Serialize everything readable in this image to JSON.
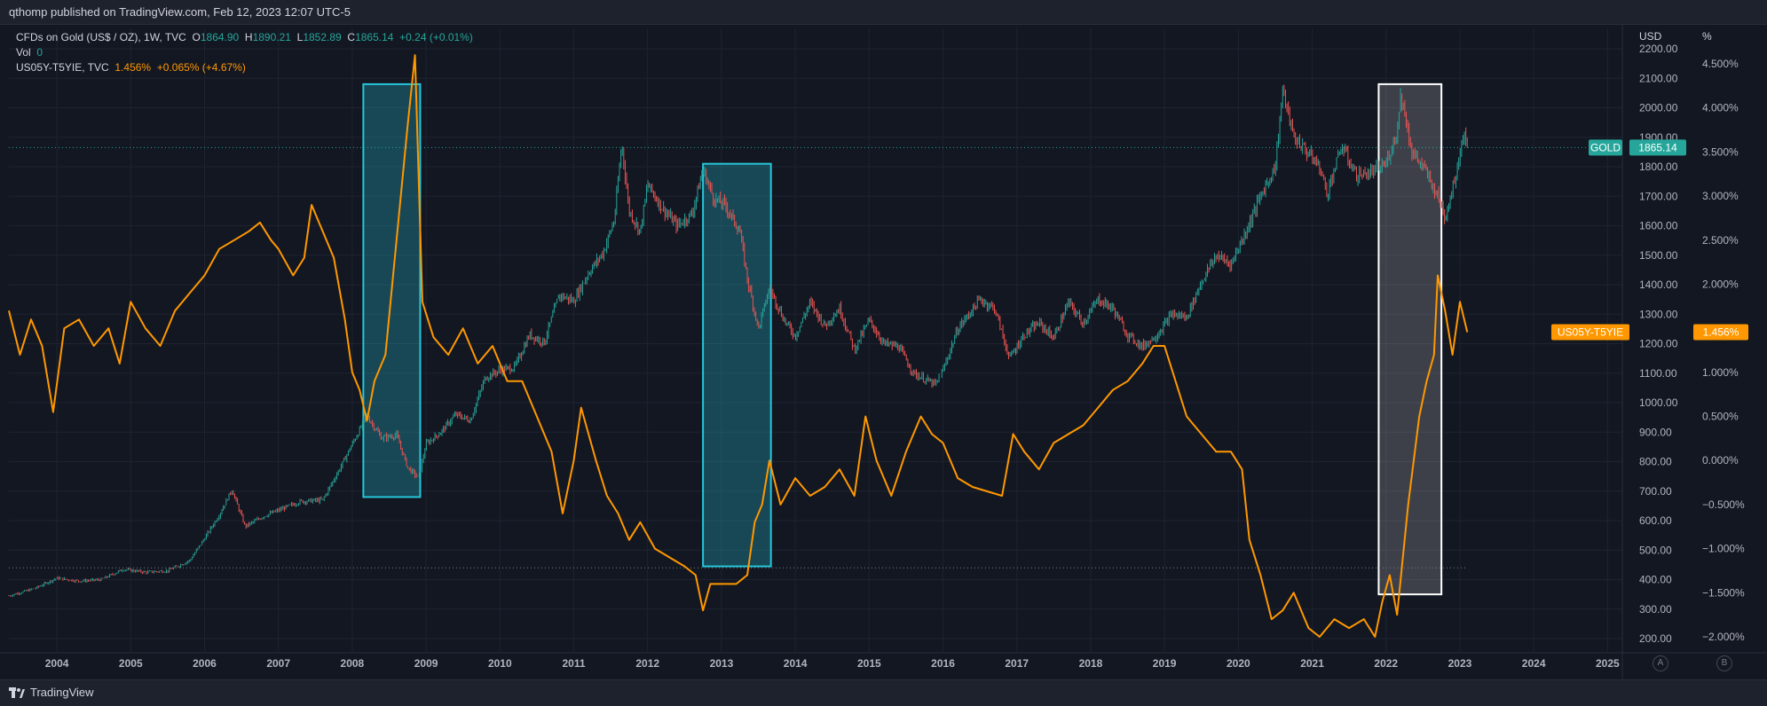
{
  "header": {
    "published": "qthomp published on TradingView.com, Feb 12, 2023 12:07 UTC-5"
  },
  "legend": {
    "gold": {
      "name": "CFDs on Gold (US$ / OZ), 1W, TVC",
      "o_label": "O",
      "o": "1864.90",
      "h_label": "H",
      "h": "1890.21",
      "l_label": "L",
      "l": "1852.89",
      "c_label": "C",
      "c": "1865.14",
      "change": "+0.24 (+0.01%)"
    },
    "vol": {
      "label": "Vol",
      "value": "0"
    },
    "spread": {
      "name": "US05Y-T5YIE, TVC",
      "value": "1.456%",
      "change": "+0.065% (+4.67%)"
    }
  },
  "axes": {
    "left_unit": "USD",
    "right_unit": "%",
    "usd_ticks": [
      "2200.00",
      "2100.00",
      "2000.00",
      "1900.00",
      "1800.00",
      "1700.00",
      "1600.00",
      "1500.00",
      "1400.00",
      "1300.00",
      "1200.00",
      "1100.00",
      "1000.00",
      "900.00",
      "800.00",
      "700.00",
      "600.00",
      "500.00",
      "400.00",
      "300.00",
      "200.00"
    ],
    "pct_ticks": [
      "4.500%",
      "4.000%",
      "3.500%",
      "3.000%",
      "2.500%",
      "2.000%",
      "1.500%",
      "1.000%",
      "0.500%",
      "0.000%",
      "−0.500%",
      "−1.000%",
      "−1.500%",
      "−2.000%"
    ],
    "x_ticks": [
      "2004",
      "2005",
      "2006",
      "2007",
      "2008",
      "2009",
      "2010",
      "2011",
      "2012",
      "2013",
      "2014",
      "2015",
      "2016",
      "2017",
      "2018",
      "2019",
      "2020",
      "2021",
      "2022",
      "2023",
      "2024",
      "2025"
    ]
  },
  "price_tags": {
    "gold_label": "GOLD",
    "gold_value": "1865.14",
    "spread_label": "US05Y-T5YIE",
    "spread_value": "1.456%"
  },
  "colors": {
    "background": "#131722",
    "gold_up": "#26a69a",
    "gold_down": "#ef5350",
    "spread_line": "#ff9800",
    "box_cyan": "#26c6da",
    "box_white": "#ffffff"
  },
  "footer": {
    "brand": "TradingView",
    "btn_a": "A",
    "btn_b": "B"
  },
  "chart_data": {
    "type": "line",
    "title": "CFDs on Gold (US$ / OZ), 1W, TVC",
    "xlabel": "",
    "ylabel": "USD",
    "xlim": [
      2003.35,
      2025.2
    ],
    "ylim_usd": [
      200,
      2200
    ],
    "ylim_pct": [
      -2.0,
      4.5
    ],
    "grid": true,
    "legend_position": "top-left",
    "series": [
      {
        "name": "CFDs on Gold (US$ / OZ), 1W, TVC",
        "axis": "left",
        "style": "candles",
        "points": [
          [
            2003.35,
            345
          ],
          [
            2003.7,
            370
          ],
          [
            2004.0,
            405
          ],
          [
            2004.3,
            395
          ],
          [
            2004.6,
            400
          ],
          [
            2004.9,
            435
          ],
          [
            2005.2,
            425
          ],
          [
            2005.5,
            430
          ],
          [
            2005.8,
            465
          ],
          [
            2006.0,
            540
          ],
          [
            2006.2,
            620
          ],
          [
            2006.37,
            705
          ],
          [
            2006.55,
            580
          ],
          [
            2006.8,
            615
          ],
          [
            2007.0,
            635
          ],
          [
            2007.3,
            665
          ],
          [
            2007.6,
            670
          ],
          [
            2007.85,
            785
          ],
          [
            2008.0,
            860
          ],
          [
            2008.2,
            955
          ],
          [
            2008.4,
            880
          ],
          [
            2008.6,
            890
          ],
          [
            2008.75,
            780
          ],
          [
            2008.9,
            745
          ],
          [
            2009.0,
            860
          ],
          [
            2009.2,
            900
          ],
          [
            2009.4,
            960
          ],
          [
            2009.6,
            940
          ],
          [
            2009.8,
            1085
          ],
          [
            2010.0,
            1110
          ],
          [
            2010.2,
            1120
          ],
          [
            2010.4,
            1230
          ],
          [
            2010.6,
            1205
          ],
          [
            2010.8,
            1365
          ],
          [
            2011.0,
            1345
          ],
          [
            2011.2,
            1440
          ],
          [
            2011.4,
            1510
          ],
          [
            2011.55,
            1620
          ],
          [
            2011.65,
            1880
          ],
          [
            2011.75,
            1650
          ],
          [
            2011.9,
            1580
          ],
          [
            2012.0,
            1740
          ],
          [
            2012.2,
            1660
          ],
          [
            2012.4,
            1600
          ],
          [
            2012.6,
            1640
          ],
          [
            2012.75,
            1790
          ],
          [
            2012.9,
            1690
          ],
          [
            2013.05,
            1670
          ],
          [
            2013.25,
            1580
          ],
          [
            2013.35,
            1420
          ],
          [
            2013.5,
            1250
          ],
          [
            2013.65,
            1390
          ],
          [
            2013.85,
            1280
          ],
          [
            2014.0,
            1225
          ],
          [
            2014.2,
            1340
          ],
          [
            2014.4,
            1260
          ],
          [
            2014.6,
            1320
          ],
          [
            2014.8,
            1180
          ],
          [
            2015.0,
            1280
          ],
          [
            2015.2,
            1200
          ],
          [
            2015.4,
            1190
          ],
          [
            2015.6,
            1100
          ],
          [
            2015.9,
            1060
          ],
          [
            2016.0,
            1110
          ],
          [
            2016.2,
            1250
          ],
          [
            2016.5,
            1350
          ],
          [
            2016.7,
            1320
          ],
          [
            2016.9,
            1150
          ],
          [
            2017.1,
            1230
          ],
          [
            2017.3,
            1270
          ],
          [
            2017.5,
            1220
          ],
          [
            2017.7,
            1340
          ],
          [
            2017.9,
            1270
          ],
          [
            2018.1,
            1350
          ],
          [
            2018.3,
            1320
          ],
          [
            2018.5,
            1230
          ],
          [
            2018.7,
            1190
          ],
          [
            2018.9,
            1230
          ],
          [
            2019.1,
            1300
          ],
          [
            2019.3,
            1290
          ],
          [
            2019.5,
            1410
          ],
          [
            2019.7,
            1500
          ],
          [
            2019.9,
            1470
          ],
          [
            2020.1,
            1580
          ],
          [
            2020.3,
            1700
          ],
          [
            2020.5,
            1800
          ],
          [
            2020.6,
            2060
          ],
          [
            2020.75,
            1900
          ],
          [
            2020.9,
            1860
          ],
          [
            2021.1,
            1800
          ],
          [
            2021.2,
            1710
          ],
          [
            2021.4,
            1870
          ],
          [
            2021.6,
            1770
          ],
          [
            2021.8,
            1780
          ],
          [
            2022.0,
            1810
          ],
          [
            2022.15,
            1920
          ],
          [
            2022.2,
            2050
          ],
          [
            2022.35,
            1850
          ],
          [
            2022.5,
            1800
          ],
          [
            2022.7,
            1700
          ],
          [
            2022.8,
            1630
          ],
          [
            2022.95,
            1780
          ],
          [
            2023.05,
            1920
          ],
          [
            2023.1,
            1865
          ]
        ]
      },
      {
        "name": "US05Y-T5YIE, TVC",
        "axis": "right",
        "style": "line",
        "points": [
          [
            2003.35,
            1.7
          ],
          [
            2003.5,
            1.2
          ],
          [
            2003.65,
            1.6
          ],
          [
            2003.8,
            1.3
          ],
          [
            2003.95,
            0.55
          ],
          [
            2004.1,
            1.5
          ],
          [
            2004.3,
            1.6
          ],
          [
            2004.5,
            1.3
          ],
          [
            2004.7,
            1.5
          ],
          [
            2004.85,
            1.1
          ],
          [
            2005.0,
            1.8
          ],
          [
            2005.2,
            1.5
          ],
          [
            2005.4,
            1.3
          ],
          [
            2005.6,
            1.7
          ],
          [
            2005.8,
            1.9
          ],
          [
            2006.0,
            2.1
          ],
          [
            2006.2,
            2.4
          ],
          [
            2006.4,
            2.5
          ],
          [
            2006.6,
            2.6
          ],
          [
            2006.75,
            2.7
          ],
          [
            2006.9,
            2.5
          ],
          [
            2007.0,
            2.4
          ],
          [
            2007.2,
            2.1
          ],
          [
            2007.35,
            2.3
          ],
          [
            2007.45,
            2.9
          ],
          [
            2007.6,
            2.6
          ],
          [
            2007.75,
            2.3
          ],
          [
            2007.9,
            1.6
          ],
          [
            2008.0,
            1.0
          ],
          [
            2008.1,
            0.8
          ],
          [
            2008.2,
            0.45
          ],
          [
            2008.3,
            0.9
          ],
          [
            2008.45,
            1.2
          ],
          [
            2008.6,
            2.5
          ],
          [
            2008.75,
            3.8
          ],
          [
            2008.85,
            4.6
          ],
          [
            2008.95,
            1.8
          ],
          [
            2009.1,
            1.4
          ],
          [
            2009.3,
            1.2
          ],
          [
            2009.5,
            1.5
          ],
          [
            2009.7,
            1.1
          ],
          [
            2009.9,
            1.3
          ],
          [
            2010.1,
            0.9
          ],
          [
            2010.3,
            0.9
          ],
          [
            2010.5,
            0.5
          ],
          [
            2010.7,
            0.1
          ],
          [
            2010.85,
            -0.6
          ],
          [
            2011.0,
            0.0
          ],
          [
            2011.1,
            0.6
          ],
          [
            2011.3,
            0.0
          ],
          [
            2011.45,
            -0.4
          ],
          [
            2011.6,
            -0.6
          ],
          [
            2011.75,
            -0.9
          ],
          [
            2011.9,
            -0.7
          ],
          [
            2012.1,
            -1.0
          ],
          [
            2012.3,
            -1.1
          ],
          [
            2012.5,
            -1.2
          ],
          [
            2012.65,
            -1.3
          ],
          [
            2012.75,
            -1.7
          ],
          [
            2012.85,
            -1.4
          ],
          [
            2013.0,
            -1.4
          ],
          [
            2013.2,
            -1.4
          ],
          [
            2013.35,
            -1.3
          ],
          [
            2013.45,
            -0.7
          ],
          [
            2013.55,
            -0.5
          ],
          [
            2013.65,
            0.0
          ],
          [
            2013.8,
            -0.5
          ],
          [
            2014.0,
            -0.2
          ],
          [
            2014.2,
            -0.4
          ],
          [
            2014.4,
            -0.3
          ],
          [
            2014.6,
            -0.1
          ],
          [
            2014.8,
            -0.4
          ],
          [
            2014.95,
            0.5
          ],
          [
            2015.1,
            0.0
          ],
          [
            2015.3,
            -0.4
          ],
          [
            2015.5,
            0.1
          ],
          [
            2015.7,
            0.5
          ],
          [
            2015.85,
            0.3
          ],
          [
            2016.0,
            0.2
          ],
          [
            2016.2,
            -0.2
          ],
          [
            2016.4,
            -0.3
          ],
          [
            2016.6,
            -0.35
          ],
          [
            2016.8,
            -0.4
          ],
          [
            2016.95,
            0.3
          ],
          [
            2017.1,
            0.1
          ],
          [
            2017.3,
            -0.1
          ],
          [
            2017.5,
            0.2
          ],
          [
            2017.7,
            0.3
          ],
          [
            2017.9,
            0.4
          ],
          [
            2018.1,
            0.6
          ],
          [
            2018.3,
            0.8
          ],
          [
            2018.5,
            0.9
          ],
          [
            2018.7,
            1.1
          ],
          [
            2018.85,
            1.3
          ],
          [
            2019.0,
            1.3
          ],
          [
            2019.15,
            0.9
          ],
          [
            2019.3,
            0.5
          ],
          [
            2019.5,
            0.3
          ],
          [
            2019.7,
            0.1
          ],
          [
            2019.9,
            0.1
          ],
          [
            2020.05,
            -0.1
          ],
          [
            2020.15,
            -0.9
          ],
          [
            2020.3,
            -1.3
          ],
          [
            2020.45,
            -1.8
          ],
          [
            2020.6,
            -1.7
          ],
          [
            2020.75,
            -1.5
          ],
          [
            2020.95,
            -1.9
          ],
          [
            2021.1,
            -2.0
          ],
          [
            2021.3,
            -1.8
          ],
          [
            2021.5,
            -1.9
          ],
          [
            2021.7,
            -1.8
          ],
          [
            2021.85,
            -2.0
          ],
          [
            2021.95,
            -1.6
          ],
          [
            2022.05,
            -1.3
          ],
          [
            2022.15,
            -1.75
          ],
          [
            2022.3,
            -0.5
          ],
          [
            2022.45,
            0.5
          ],
          [
            2022.55,
            0.9
          ],
          [
            2022.65,
            1.2
          ],
          [
            2022.7,
            2.1
          ],
          [
            2022.8,
            1.7
          ],
          [
            2022.9,
            1.2
          ],
          [
            2023.0,
            1.8
          ],
          [
            2023.1,
            1.456
          ]
        ]
      }
    ],
    "highlight_boxes": [
      {
        "from": 2008.15,
        "to": 2008.92,
        "usd_top": 2080,
        "usd_bottom": 680,
        "color": "cyan"
      },
      {
        "from": 2012.75,
        "to": 2013.67,
        "usd_top": 1810,
        "usd_bottom": 445,
        "color": "cyan"
      },
      {
        "from": 2021.9,
        "to": 2022.75,
        "usd_top": 2080,
        "usd_bottom": 350,
        "color": "white"
      }
    ],
    "reference_lines_usd": [
      1865.14,
      440
    ]
  }
}
